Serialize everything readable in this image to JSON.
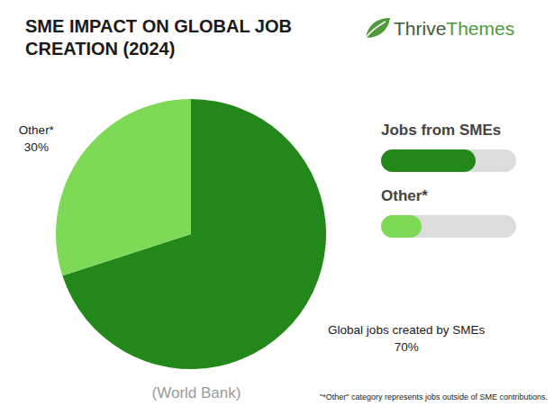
{
  "chart_data": {
    "type": "pie",
    "title": [
      "SME IMPACT ON GLOBAL JOB",
      "CREATION (2024)"
    ],
    "brand": [
      "Thrive",
      "Themes"
    ],
    "categories": [
      "Global jobs created by SMEs",
      "Other*"
    ],
    "values": [
      70,
      30
    ],
    "value_labels": [
      "70%",
      "30%"
    ],
    "colors": [
      "#23881a",
      "#7ed957"
    ],
    "data_labels": true,
    "legend_labels": [
      "Jobs from SMEs",
      "Other*"
    ],
    "source": "(World Bank)",
    "footnote": "\"*Other\" category represents jobs outside of SME contributions."
  }
}
